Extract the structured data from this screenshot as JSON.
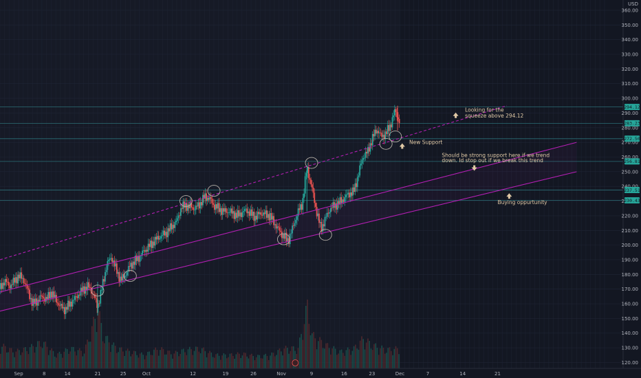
{
  "chart_data": {
    "type": "candlestick",
    "currency_label": "USD",
    "y_ticks": [
      120,
      130,
      140,
      150,
      160,
      170,
      180,
      190,
      200,
      210,
      220,
      230,
      240,
      250,
      260,
      270,
      280,
      290,
      300,
      310,
      320,
      330,
      340,
      350,
      360
    ],
    "y_tick_labels": [
      "120.00",
      "130.00",
      "140.00",
      "150.00",
      "160.00",
      "170.00",
      "180.00",
      "190.00",
      "200.00",
      "210.00",
      "220.00",
      "230.00",
      "240.00",
      "250.00",
      "260.00",
      "270.00",
      "280.00",
      "290.00",
      "300.00",
      "310.00",
      "320.00",
      "330.00",
      "340.00",
      "350.00",
      "360.00"
    ],
    "ylim": [
      116,
      367
    ],
    "x_tick_labels": [
      "Sep",
      "8",
      "14",
      "21",
      "25",
      "Oct",
      "12",
      "19",
      "26",
      "Nov",
      "9",
      "16",
      "23",
      "Dec",
      "7",
      "14",
      "21"
    ],
    "xlim": [
      0,
      134
    ],
    "x_tick_positions": [
      4,
      9.5,
      14.5,
      21,
      26.5,
      31.5,
      41.5,
      48.5,
      54.5,
      60.5,
      67,
      74,
      80,
      86,
      92,
      99.5,
      107
    ],
    "last_data_x": 86,
    "price_path": [
      [
        0,
        170
      ],
      [
        1,
        176
      ],
      [
        2,
        172
      ],
      [
        3,
        175
      ],
      [
        4,
        179
      ],
      [
        5,
        177
      ],
      [
        6,
        169
      ],
      [
        7,
        160
      ],
      [
        8,
        162
      ],
      [
        9,
        165
      ],
      [
        10,
        163
      ],
      [
        11,
        168
      ],
      [
        12,
        163
      ],
      [
        13,
        158
      ],
      [
        14,
        156
      ],
      [
        15,
        160
      ],
      [
        16,
        163
      ],
      [
        17,
        167
      ],
      [
        18,
        170
      ],
      [
        19,
        172
      ],
      [
        20,
        167
      ],
      [
        21,
        158
      ],
      [
        22,
        172
      ],
      [
        23,
        187
      ],
      [
        24,
        192
      ],
      [
        25,
        183
      ],
      [
        26,
        176
      ],
      [
        27,
        180
      ],
      [
        28,
        186
      ],
      [
        29,
        189
      ],
      [
        30,
        192
      ],
      [
        31,
        196
      ],
      [
        32,
        199
      ],
      [
        33,
        202
      ],
      [
        34,
        205
      ],
      [
        35,
        207
      ],
      [
        36,
        209
      ],
      [
        37,
        213
      ],
      [
        38,
        216
      ],
      [
        39,
        226
      ],
      [
        40,
        227
      ],
      [
        41,
        226
      ],
      [
        42,
        225
      ],
      [
        43,
        228
      ],
      [
        44,
        233
      ],
      [
        45,
        232
      ],
      [
        46,
        227
      ],
      [
        47,
        225
      ],
      [
        48,
        223
      ],
      [
        49,
        223
      ],
      [
        50,
        222
      ],
      [
        51,
        220
      ],
      [
        52,
        222
      ],
      [
        53,
        224
      ],
      [
        54,
        221
      ],
      [
        55,
        219
      ],
      [
        56,
        222
      ],
      [
        57,
        221
      ],
      [
        58,
        220
      ],
      [
        59,
        215
      ],
      [
        60,
        210
      ],
      [
        61,
        206
      ],
      [
        62,
        203
      ],
      [
        63,
        212
      ],
      [
        64,
        222
      ],
      [
        65,
        228
      ],
      [
        66,
        253
      ],
      [
        67,
        240
      ],
      [
        68,
        224
      ],
      [
        69,
        211
      ],
      [
        70,
        218
      ],
      [
        71,
        225
      ],
      [
        72,
        227
      ],
      [
        73,
        229
      ],
      [
        74,
        232
      ],
      [
        75,
        235
      ],
      [
        76,
        236
      ],
      [
        77,
        247
      ],
      [
        78,
        260
      ],
      [
        79,
        263
      ],
      [
        80,
        272
      ],
      [
        81,
        279
      ],
      [
        82,
        274
      ],
      [
        83,
        276
      ],
      [
        84,
        282
      ],
      [
        85,
        292
      ],
      [
        86,
        283
      ]
    ],
    "volume_path": [
      [
        0,
        0.35
      ],
      [
        3,
        0.25
      ],
      [
        6,
        0.3
      ],
      [
        9,
        0.4
      ],
      [
        12,
        0.2
      ],
      [
        15,
        0.3
      ],
      [
        18,
        0.25
      ],
      [
        21,
        0.9
      ],
      [
        22,
        0.5
      ],
      [
        25,
        0.3
      ],
      [
        28,
        0.25
      ],
      [
        31,
        0.2
      ],
      [
        34,
        0.3
      ],
      [
        37,
        0.22
      ],
      [
        40,
        0.28
      ],
      [
        43,
        0.3
      ],
      [
        46,
        0.2
      ],
      [
        49,
        0.2
      ],
      [
        52,
        0.22
      ],
      [
        55,
        0.18
      ],
      [
        58,
        0.2
      ],
      [
        61,
        0.3
      ],
      [
        64,
        0.3
      ],
      [
        66,
        0.95
      ],
      [
        67,
        0.5
      ],
      [
        70,
        0.35
      ],
      [
        73,
        0.25
      ],
      [
        76,
        0.3
      ],
      [
        78,
        0.45
      ],
      [
        80,
        0.35
      ],
      [
        83,
        0.28
      ],
      [
        86,
        0.3
      ]
    ],
    "trend_lines": [
      {
        "name": "upper-dashed",
        "style": "dashed",
        "from": [
          0,
          190
        ],
        "to": [
          109,
          295
        ]
      },
      {
        "name": "middle-channel",
        "style": "solid",
        "from": [
          0,
          168
        ],
        "to": [
          124,
          270
        ]
      },
      {
        "name": "lower-channel",
        "style": "solid",
        "from": [
          0,
          155
        ],
        "to": [
          124,
          250
        ]
      }
    ],
    "horizontal_levels": [
      {
        "price": 294.12,
        "label": "294.12",
        "color": "#26a69a"
      },
      {
        "price": 283,
        "label": "283.23",
        "color": "#26a69a"
      },
      {
        "price": 272.5,
        "label": "272.50",
        "color": "#26a69a"
      },
      {
        "price": 257,
        "label": "256.81",
        "color": "#26a69a"
      },
      {
        "price": 237.5,
        "label": "237.51",
        "color": "#26a69a"
      },
      {
        "price": 230.5,
        "label": "230.43",
        "color": "#26a69a"
      }
    ],
    "circle_markers": [
      [
        21,
        169
      ],
      [
        28,
        179
      ],
      [
        40,
        230
      ],
      [
        46,
        237
      ],
      [
        61,
        204
      ],
      [
        67,
        256
      ],
      [
        70,
        207
      ],
      [
        85,
        274
      ],
      [
        83,
        269
      ]
    ],
    "annotations": [
      {
        "text": "Looking for the",
        "x": 100,
        "y": 291,
        "arrow": "up",
        "arrow_x": 98,
        "arrow_y": 288
      },
      {
        "text": "squeeze above 294.12",
        "x": 100,
        "y": 287,
        "arrow": "none"
      },
      {
        "text": "New Support",
        "x": 88,
        "y": 269,
        "arrow": "up",
        "arrow_x": 86.5,
        "arrow_y": 267
      },
      {
        "text": "Should be strong support here if we trend",
        "x": 95,
        "y": 260,
        "arrow": "none"
      },
      {
        "text": "down. Id stop out if we break this trend",
        "x": 95,
        "y": 256.5,
        "arrow": "down",
        "arrow_x": 102,
        "arrow_y": 253
      },
      {
        "text": "Buying oppurtunity",
        "x": 107,
        "y": 228,
        "arrow": "up",
        "arrow_x": 109.5,
        "arrow_y": 233
      }
    ],
    "colors": {
      "background": "#131722",
      "grid": "#1f2535",
      "up": "#26a69a",
      "down": "#ef5350",
      "channel": "#b51fb5",
      "level_line": "#2b6f77",
      "annotation": "#e0c9a6",
      "volume": "#1b5953"
    },
    "grid": true
  }
}
